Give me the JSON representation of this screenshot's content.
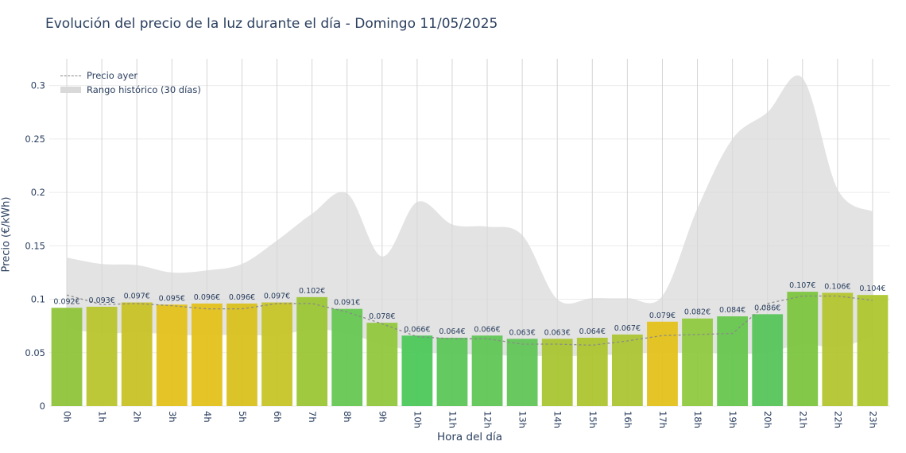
{
  "title": "Evolución del precio de la luz durante el día - Domingo 11/05/2025",
  "chart_data": {
    "type": "bar",
    "xlabel": "Hora del día",
    "ylabel": "Precio (€/kWh)",
    "ylim": [
      0,
      0.325
    ],
    "yticks": [
      0,
      0.05,
      0.1,
      0.15,
      0.2,
      0.25,
      0.3
    ],
    "ytick_labels": [
      "0",
      "0.05",
      "0.1",
      "0.15",
      "0.2",
      "0.25",
      "0.3"
    ],
    "categories": [
      "0h",
      "1h",
      "2h",
      "3h",
      "4h",
      "5h",
      "6h",
      "7h",
      "8h",
      "9h",
      "10h",
      "11h",
      "12h",
      "13h",
      "14h",
      "15h",
      "16h",
      "17h",
      "18h",
      "19h",
      "20h",
      "21h",
      "22h",
      "23h"
    ],
    "values": [
      0.092,
      0.093,
      0.097,
      0.095,
      0.096,
      0.096,
      0.097,
      0.102,
      0.091,
      0.078,
      0.066,
      0.064,
      0.066,
      0.063,
      0.063,
      0.064,
      0.067,
      0.079,
      0.082,
      0.084,
      0.086,
      0.107,
      0.106,
      0.104
    ],
    "data_labels": [
      "0.092€",
      "0.093€",
      "0.097€",
      "0.095€",
      "0.096€",
      "0.096€",
      "0.097€",
      "0.102€",
      "0.091€",
      "0.078€",
      "0.066€",
      "0.064€",
      "0.066€",
      "0.063€",
      "0.063€",
      "0.064€",
      "0.067€",
      "0.079€",
      "0.082€",
      "0.084€",
      "0.086€",
      "0.107€",
      "0.106€",
      "0.104€"
    ],
    "bar_colors": [
      "#8fc43a",
      "#b8c52c",
      "#c9c227",
      "#e3c11a",
      "#e3c11a",
      "#d9c11f",
      "#c6c427",
      "#9cc635",
      "#66c752",
      "#91c83d",
      "#4cc85a",
      "#5cc658",
      "#5fc655",
      "#62c557",
      "#a9c531",
      "#aec530",
      "#acc533",
      "#e3c11a",
      "#8fc93f",
      "#66c64e",
      "#57c55b",
      "#7cc53e",
      "#b3c52f",
      "#aec72e"
    ],
    "series": [
      {
        "name": "Precio ayer",
        "style": "dashed",
        "color": "#8a8a8a",
        "values": [
          0.104,
          0.095,
          0.096,
          0.094,
          0.091,
          0.091,
          0.096,
          0.096,
          0.088,
          0.077,
          0.065,
          0.063,
          0.063,
          0.058,
          0.058,
          0.057,
          0.061,
          0.066,
          0.067,
          0.068,
          0.096,
          0.103,
          0.103,
          0.099
        ]
      }
    ],
    "band": {
      "name": "Rango histórico (30 días)",
      "color": "#d9d9d9",
      "upper": [
        0.139,
        0.133,
        0.132,
        0.125,
        0.127,
        0.133,
        0.155,
        0.18,
        0.199,
        0.14,
        0.191,
        0.17,
        0.168,
        0.16,
        0.1,
        0.101,
        0.101,
        0.103,
        0.185,
        0.25,
        0.275,
        0.307,
        0.203,
        0.182
      ],
      "lower": [
        0.073,
        0.068,
        0.069,
        0.067,
        0.066,
        0.067,
        0.066,
        0.072,
        0.068,
        0.058,
        0.051,
        0.049,
        0.048,
        0.047,
        0.047,
        0.047,
        0.049,
        0.05,
        0.05,
        0.049,
        0.05,
        0.058,
        0.055,
        0.065
      ]
    },
    "legend_position": "top-left",
    "grid": true
  }
}
